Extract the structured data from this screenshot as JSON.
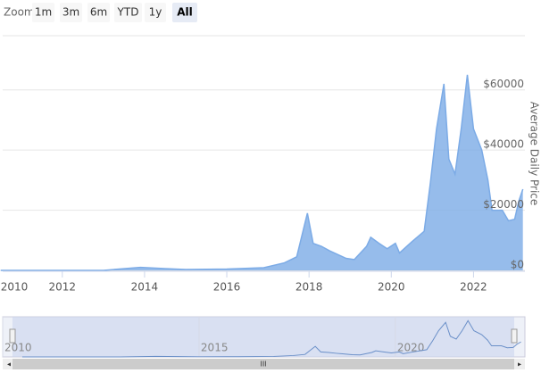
{
  "chart_data": {
    "type": "area",
    "zoom_label": "Zoom",
    "zoom_buttons": [
      "1m",
      "3m",
      "6m",
      "YTD",
      "1y",
      "All"
    ],
    "selected_button": 5,
    "y_axis_title": "Average Daily Price",
    "color": "#7cabe6",
    "grid": true,
    "x": [
      2010.5,
      2011,
      2011.5,
      2012,
      2013,
      2013.9,
      2014.5,
      2015,
      2016,
      2016.9,
      2017.4,
      2017.7,
      2017.96,
      2018.1,
      2018.3,
      2018.5,
      2018.9,
      2019.1,
      2019.4,
      2019.5,
      2019.7,
      2019.9,
      2020.1,
      2020.2,
      2020.5,
      2020.8,
      2020.95,
      2021.1,
      2021.28,
      2021.4,
      2021.55,
      2021.7,
      2021.85,
      2022.0,
      2022.2,
      2022.35,
      2022.45,
      2022.7,
      2022.85,
      2023.0,
      2023.1,
      2023.2
    ],
    "values": [
      0.1,
      0.3,
      15,
      5,
      13,
      1000,
      600,
      300,
      430,
      900,
      2500,
      4500,
      19000,
      9000,
      8000,
      6500,
      4000,
      3600,
      8000,
      11000,
      9000,
      7200,
      9000,
      5800,
      9500,
      13000,
      29000,
      47000,
      62000,
      37000,
      32000,
      47000,
      65000,
      47000,
      40000,
      30000,
      20000,
      20000,
      16500,
      17000,
      23000,
      27000
    ],
    "xlim": [
      2010.55,
      2023.25
    ],
    "xticks": [
      2010,
      2012,
      2014,
      2016,
      2018,
      2020,
      2022
    ],
    "ylim": [
      0,
      78000
    ],
    "yticks": [
      {
        "value": 0,
        "label": "$0"
      },
      {
        "value": 20000,
        "label": "$20000"
      },
      {
        "value": 40000,
        "label": "$40000"
      },
      {
        "value": 60000,
        "label": "$60000"
      }
    ],
    "navigator": {
      "xlim": [
        2010,
        2023.3
      ],
      "ylim": [
        0,
        72000
      ],
      "xticks": [
        2010,
        2015,
        2020
      ]
    }
  }
}
